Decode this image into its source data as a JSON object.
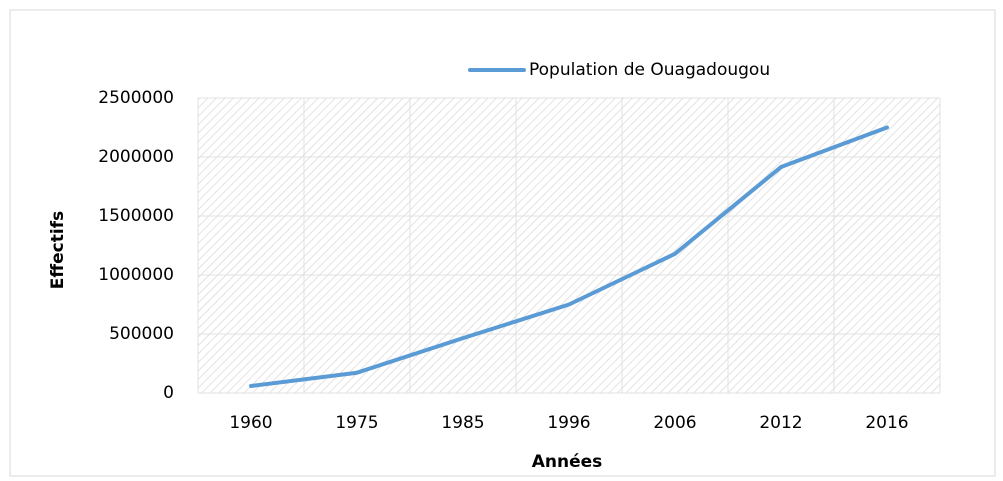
{
  "chart_data": {
    "type": "line",
    "categories": [
      "1960",
      "1975",
      "1985",
      "1996",
      "2006",
      "2012",
      "2016"
    ],
    "series": [
      {
        "name": "Population de Ouagadougou",
        "color": "#5b9bd5",
        "values": [
          59000,
          172000,
          465000,
          750000,
          1180000,
          1915000,
          2250000
        ]
      }
    ],
    "xlabel": "Années",
    "ylabel": "Effectifs",
    "ylim": [
      0,
      2500000
    ],
    "yticks": [
      0,
      500000,
      1000000,
      1500000,
      2000000,
      2500000
    ],
    "grid": true,
    "legend": "top"
  }
}
